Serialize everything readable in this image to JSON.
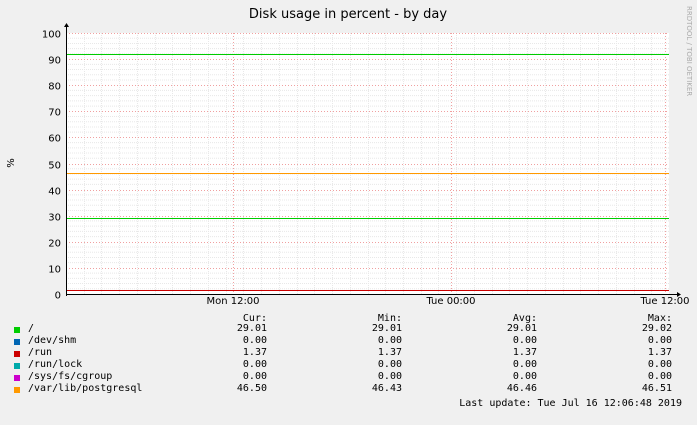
{
  "chart_data": {
    "type": "line",
    "title": "Disk usage in percent - by day",
    "ylabel": "%",
    "watermark": "RRDTOOL / TOBI OETIKER",
    "ylim": [
      0,
      100
    ],
    "y_ticks": [
      "0",
      "10",
      "20",
      "30",
      "40",
      "50",
      "60",
      "70",
      "80",
      "90",
      "100"
    ],
    "x_ticks": [
      "Mon 12:00",
      "Tue 00:00",
      "Tue 12:00"
    ],
    "reference_line": {
      "value": 92,
      "color": "#00cc00"
    },
    "series": [
      {
        "name": "/",
        "color": "#00cc00",
        "values": [
          29.01,
          29.02
        ]
      },
      {
        "name": "/dev/shm",
        "color": "#0066b3",
        "values": [
          0.0,
          0.0
        ]
      },
      {
        "name": "/run",
        "color": "#cc0000",
        "values": [
          1.37,
          1.37
        ]
      },
      {
        "name": "/run/lock",
        "color": "#00aaaa",
        "values": [
          0.0,
          0.0
        ]
      },
      {
        "name": "/sys/fs/cgroup",
        "color": "#cc00cc",
        "values": [
          0.0,
          0.0
        ]
      },
      {
        "name": "/var/lib/postgresql",
        "color": "#ff9900",
        "values": [
          46.5,
          46.51
        ]
      }
    ]
  },
  "legend": {
    "headers": {
      "cur": "Cur:",
      "min": "Min:",
      "avg": "Avg:",
      "max": "Max:"
    },
    "rows": [
      {
        "name": "/",
        "color": "#00cc00",
        "cur": "29.01",
        "min": "29.01",
        "avg": "29.01",
        "max": "29.02"
      },
      {
        "name": "/dev/shm",
        "color": "#0066b3",
        "cur": "0.00",
        "min": "0.00",
        "avg": "0.00",
        "max": "0.00"
      },
      {
        "name": "/run",
        "color": "#cc0000",
        "cur": "1.37",
        "min": "1.37",
        "avg": "1.37",
        "max": "1.37"
      },
      {
        "name": "/run/lock",
        "color": "#00aaaa",
        "cur": "0.00",
        "min": "0.00",
        "avg": "0.00",
        "max": "0.00"
      },
      {
        "name": "/sys/fs/cgroup",
        "color": "#cc00cc",
        "cur": "0.00",
        "min": "0.00",
        "avg": "0.00",
        "max": "0.00"
      },
      {
        "name": "/var/lib/postgresql",
        "color": "#ff9900",
        "cur": "46.50",
        "min": "46.43",
        "avg": "46.46",
        "max": "46.51"
      }
    ]
  },
  "last_update": "Last update:  Tue Jul 16 12:06:48 2019"
}
